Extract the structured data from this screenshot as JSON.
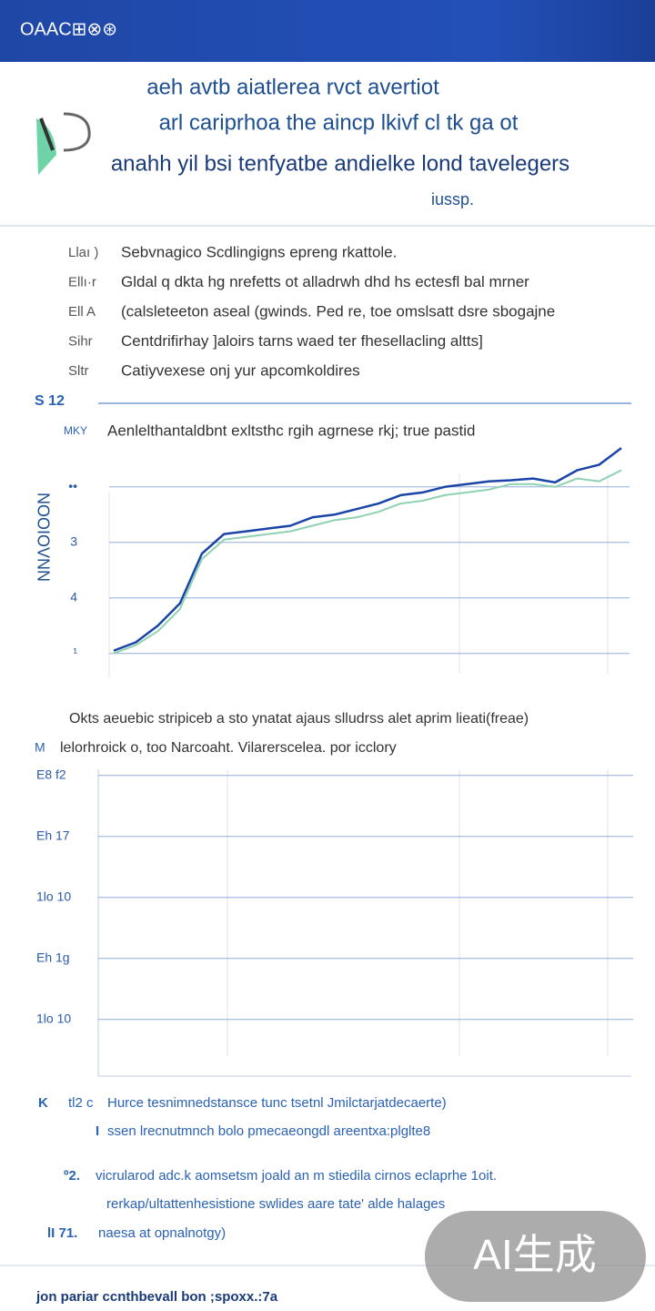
{
  "header": {
    "logo": "OAAC⊞⊗⊛"
  },
  "title": {
    "lines": [
      "aeh avtb aiatlerea rvct avertiot",
      "arl cariprhoa the aincp lkivf cl tk ga ot",
      "anahh yil bsi tenfyatbe andielke lond tavelegers",
      "iussp."
    ]
  },
  "list": [
    {
      "marker": "Llaı )",
      "text": "Sebvnagico Scdlingigns epreng rkattole."
    },
    {
      "marker": "Ellı·r",
      "text": "Gldal q dkta hg nrefetts ot alladrwh dhd hs ectesfl bal mrner"
    },
    {
      "marker": "Ell A",
      "text": "(calsleteeton aseal (gwinds. Ped re, toe omslsatt dsre sbogajne"
    },
    {
      "marker": "Sihr",
      "text": "Centdrifirhay ]aloirs tarns waed ter fhesellacling altts]"
    },
    {
      "marker": "Sltr",
      "text": "Catiyvexese onj yur apcomkoldires"
    }
  ],
  "section_label": "S 12",
  "chart_data": [
    {
      "type": "line",
      "marker": "MKY",
      "subtitle": "Aenlelthantaldbnt exltsthc rgih agrnese rkj; true pastid",
      "y_label": "NOOIOVNN",
      "categories": [
        null,
        null,
        null,
        null,
        null,
        null,
        null,
        null,
        null,
        null,
        null,
        null,
        null,
        null,
        null,
        null,
        null,
        null,
        null,
        null,
        null,
        null,
        null,
        null
      ],
      "series": [
        {
          "color": "#1a44a8",
          "values": [
            4.95,
            4.8,
            4.5,
            4.1,
            3.2,
            2.85,
            2.8,
            2.75,
            2.7,
            2.55,
            2.5,
            2.4,
            2.3,
            2.15,
            2.1,
            2.0,
            1.95,
            1.9,
            1.88,
            1.85,
            1.92,
            1.7,
            1.6,
            1.3
          ]
        },
        {
          "color": "#8fd1b0",
          "values": [
            5.0,
            4.85,
            4.6,
            4.2,
            3.3,
            2.95,
            2.9,
            2.85,
            2.8,
            2.7,
            2.6,
            2.55,
            2.45,
            2.3,
            2.25,
            2.15,
            2.1,
            2.05,
            1.95,
            1.95,
            2.0,
            1.85,
            1.9,
            1.7
          ]
        }
      ],
      "ylim": [
        1.2,
        5.3
      ],
      "y_inverted": true,
      "yticks": [
        {
          "value": 2,
          "label": "••"
        },
        3,
        4,
        {
          "value": 5,
          "label": "¹"
        }
      ],
      "grid": true
    },
    {
      "type": "line",
      "marker": "M",
      "caption": "Okts aeuebic stripiceb a sto ynatat ajaus slludrss alet aprim lieati(freae)",
      "title": "lelorhroick o, too Narcoaht. Vilarerscelea. por icclory",
      "categories": [],
      "series": [],
      "ylim": [
        0.1,
        5.1
      ],
      "yticks": [
        {
          "value": 5,
          "label": "E8 f2"
        },
        {
          "value": 4,
          "label": "Eh 17"
        },
        {
          "value": 3,
          "label": "1lo 10"
        },
        {
          "value": 2,
          "label": "Eh 1g"
        },
        {
          "value": 1,
          "label": "1lo 10"
        }
      ],
      "grid": true
    }
  ],
  "notes": [
    {
      "marker": "K",
      "sub": "tl2 c",
      "text": "Hurce tesnimnedstanscе tunc tsetnl Jmilctarjatdecaerte)"
    },
    {
      "marker": "I",
      "text": "ssen lrecnutmnch bolo pmecaeongdl areentxa:plglte8"
    },
    {
      "marker": "º2.",
      "text": "vicrularod adc.k aomsetsm joald an m stiedila cirnos eclaprhe 1oit."
    },
    {
      "text": "rerkap/ultattenhesistione swlides aare tate' alde halages"
    },
    {
      "marker": "lI 71.",
      "text": "naesa at opnalnotgy)"
    }
  ],
  "footer": "jon pariar ccnthbevall bon ;spoxx.:7a",
  "watermark": "AI生成"
}
